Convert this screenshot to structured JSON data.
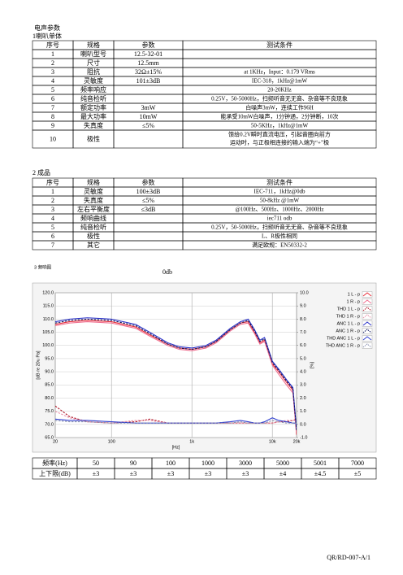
{
  "header": {
    "title": "电声参数",
    "section1": "1喇叭单体",
    "section2": "2 成品",
    "section3": "3 频响图",
    "section3_note": "0db"
  },
  "table1": {
    "columns": [
      "序号",
      "规格",
      "参数",
      "测试条件"
    ],
    "rows": [
      [
        "1",
        "喇叭型号",
        "12.5-32-01",
        null
      ],
      [
        "2",
        "尺寸",
        "12.5mm",
        null
      ],
      [
        "3",
        "阻抗",
        "32Ω±15%",
        "at 1KHz，Input：0.179 VRms"
      ],
      [
        "4",
        "灵敏度",
        "101±3dB",
        "IEC-318，1kHz@1mW"
      ],
      [
        "5",
        "频率响应",
        null,
        "20-20KHz"
      ],
      [
        "6",
        "纯音检听",
        null,
        "0.25V，50-5000Hz，扫频听音无无音、杂音等不良现象"
      ],
      [
        "7",
        "额定功率",
        "3mW",
        "白噪声3mW，连续工作96H"
      ],
      [
        "8",
        "最大功率",
        "10mW",
        "能承受10mW白噪声，1分钟通，2分钟断，10次"
      ],
      [
        "9",
        "失真度",
        "≤5%",
        "50-5KHz，1kHz@1mW"
      ],
      [
        "10",
        "极性",
        null,
        [
          "馈给0.2V瞬时直流电压，引起音圈向前方",
          "运动时，与正极相连接的输入端为“+”极"
        ]
      ]
    ]
  },
  "table2": {
    "columns": [
      "序号",
      "规格",
      "参数",
      "测试条件"
    ],
    "rows": [
      [
        "1",
        "灵敏度",
        "100±3dB",
        "IEC-711，1kHz@0db"
      ],
      [
        "2",
        "失真度",
        "≤5%",
        "50-8kHz @1mW"
      ],
      [
        "3",
        "左右平衡度",
        "≤3dB",
        "@100Hz、500Hz、1000Hz、2000Hz"
      ],
      [
        "4",
        "频响曲线",
        null,
        "iec711 odb"
      ],
      [
        "5",
        "纯音检听",
        null,
        "0.25V，50-5000Hz，扫频听音无无音、杂音等不良现象"
      ],
      [
        "6",
        "极性",
        null,
        "L、R极性相同"
      ],
      [
        "7",
        "其它",
        null,
        "满足欧规：EN50332-2"
      ]
    ]
  },
  "chart": {
    "type": "line",
    "x_label": "[Hz]",
    "y_label": "[dB re 20u Pa]",
    "y2_label": "[%]",
    "log_x": true,
    "grid": true,
    "legend": "right",
    "x": [
      20,
      30,
      50,
      100,
      200,
      300,
      500,
      700,
      1000,
      1500,
      2000,
      3000,
      4000,
      5000,
      6000,
      7000,
      8000,
      10000,
      12000,
      15000,
      18000,
      20000
    ],
    "xlim": [
      20,
      20000
    ],
    "xticks": [
      20,
      100,
      {
        "value": 1000,
        "label": "1k"
      },
      {
        "value": 10000,
        "label": "10k"
      },
      {
        "value": 20000,
        "label": "20k"
      }
    ],
    "ylim": [
      65,
      120
    ],
    "yticks": [
      {
        "value": 65,
        "label": "65.0"
      },
      {
        "value": 70,
        "label": "70.0"
      },
      {
        "value": 75,
        "label": "75.0"
      },
      {
        "value": 80,
        "label": "80.0"
      },
      {
        "value": 85,
        "label": "85.0"
      },
      {
        "value": 90,
        "label": "90.0"
      },
      {
        "value": 95,
        "label": "95.0"
      },
      {
        "value": 100,
        "label": "100.0"
      },
      {
        "value": 105,
        "label": "105.0"
      },
      {
        "value": 110,
        "label": "110.0"
      },
      {
        "value": 115,
        "label": "115.0"
      },
      {
        "value": 120,
        "label": "120.0"
      }
    ],
    "y2lim": [
      -1,
      10
    ],
    "y2ticks": [
      {
        "value": -1,
        "label": "-1.0"
      },
      {
        "value": 0,
        "label": "0.0"
      },
      {
        "value": 1,
        "label": "1.0"
      },
      {
        "value": 2,
        "label": "2.0"
      },
      {
        "value": 3,
        "label": "3.0"
      },
      {
        "value": 4,
        "label": "4.0"
      },
      {
        "value": 5,
        "label": "5.0"
      },
      {
        "value": 6,
        "label": "6.0"
      },
      {
        "value": 7,
        "label": "7.0"
      },
      {
        "value": 8,
        "label": "8.0"
      },
      {
        "value": 9,
        "label": "9.0"
      },
      {
        "value": 10,
        "label": "10.0"
      }
    ],
    "series": [
      {
        "name": "1 L - p",
        "color": "#e8303c",
        "dashed": false,
        "values": [
          108,
          109,
          109.5,
          109,
          107,
          104,
          100.5,
          99,
          98.5,
          99.5,
          101.5,
          106,
          108.5,
          109,
          105,
          101,
          102,
          93,
          90,
          86,
          83,
          66
        ]
      },
      {
        "name": "1 R - p",
        "color": "#f07090",
        "dashed": false,
        "values": [
          107.5,
          108.5,
          109,
          108.5,
          106.5,
          103.5,
          100,
          98.5,
          98,
          99,
          101,
          105.5,
          108,
          108.5,
          104.5,
          100.5,
          101.5,
          92.5,
          89,
          85,
          82,
          67
        ]
      },
      {
        "name": "THD 1 L - p",
        "color": "#b01828",
        "dashed": true,
        "axis": "y2",
        "values": [
          1.4,
          0.6,
          0.2,
          0.1,
          0.2,
          0.4,
          0.1,
          0.1,
          0.1,
          0.1,
          0.1,
          0.1,
          0.1,
          0.1,
          0.1,
          0.1,
          0.1,
          0.1,
          0.2,
          0.2,
          0.3,
          0.4
        ]
      },
      {
        "name": "THD 1 R - p",
        "color": "#e890a8",
        "dashed": true,
        "axis": "y2",
        "values": [
          1.0,
          0.5,
          0.2,
          0.1,
          0.3,
          0.3,
          0.1,
          0.1,
          0.1,
          0.1,
          0.1,
          0.1,
          0.1,
          0.1,
          0.1,
          0.1,
          0.1,
          0.1,
          0.2,
          0.3,
          0.3,
          0.3
        ]
      },
      {
        "name": "ANC 1 L - p",
        "color": "#2830c8",
        "dashed": false,
        "values": [
          109,
          110,
          110.5,
          110,
          108,
          105,
          101,
          99.5,
          99,
          100,
          102,
          106.5,
          109,
          110,
          106,
          102,
          103,
          94,
          91,
          87,
          84,
          68
        ]
      },
      {
        "name": "ANC 1 R - p",
        "color": "#101860",
        "dashed": true,
        "values": [
          108.5,
          109.5,
          110,
          109.5,
          107.5,
          104.5,
          100.5,
          99,
          98.5,
          99.5,
          101.5,
          106,
          108.5,
          109.5,
          105.5,
          101.5,
          102.5,
          93.5,
          90.5,
          86.5,
          83.5,
          67.5
        ]
      },
      {
        "name": "THD ANC 1 L - p",
        "color": "#3040d0",
        "dashed": false,
        "axis": "y2",
        "values": [
          0.4,
          0.3,
          0.3,
          0.2,
          0.1,
          0.1,
          0.1,
          0.1,
          0.1,
          0.1,
          0.1,
          0.2,
          0.3,
          0.2,
          0.1,
          0.1,
          0.2,
          0.5,
          0.3,
          0.2,
          0.1,
          0.1
        ]
      },
      {
        "name": "THD ANC 1 R - p",
        "color": "#8890b0",
        "dashed": true,
        "axis": "y2",
        "values": [
          0.3,
          0.2,
          0.2,
          0.1,
          0.1,
          0.1,
          0.1,
          0.1,
          0.1,
          0.1,
          0.1,
          0.1,
          0.2,
          0.1,
          0.1,
          0.1,
          0.1,
          0.3,
          0.2,
          0.1,
          0.1,
          0.1
        ]
      }
    ]
  },
  "table3": {
    "rows": [
      [
        "频率(Hz)",
        "50",
        "90",
        "100",
        "1000",
        "3000",
        "5000",
        "5001",
        "7000"
      ],
      [
        "上下限(dB)",
        "±3",
        "±3",
        "±3",
        "±3",
        "±3",
        "±4",
        "±4.5",
        "±5"
      ]
    ]
  },
  "footer": {
    "doc_code": "QR/RD-007-A/1"
  }
}
